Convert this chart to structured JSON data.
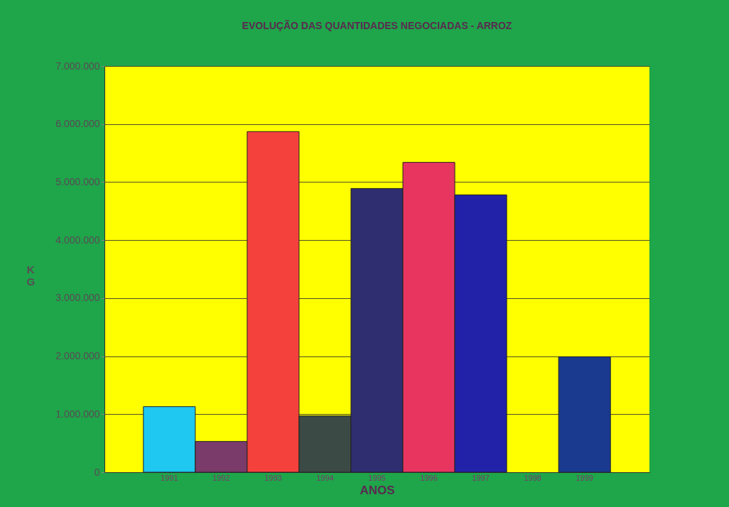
{
  "chart_data": {
    "type": "bar",
    "title": "EVOLUÇÃO DAS QUANTIDADES NEGOCIADAS - ARROZ",
    "xlabel": "ANOS",
    "ylabel": "KG",
    "categories": [
      "1991",
      "1992",
      "1993",
      "1994",
      "1995",
      "1996",
      "1997",
      "1998",
      "1999"
    ],
    "values": [
      1130000,
      530000,
      5870000,
      970000,
      4890000,
      5340000,
      4780000,
      null,
      1990000
    ],
    "colors": [
      "#1ec8f0",
      "#7a3a6a",
      "#f5413c",
      "#3c4a45",
      "#2e2e70",
      "#e83560",
      "#2222a8",
      "#2222a8",
      "#1a3a90"
    ],
    "ylim": [
      0,
      7000000
    ],
    "yticks": [
      {
        "value": 0,
        "label": "0"
      },
      {
        "value": 1000000,
        "label": "1.000.000"
      },
      {
        "value": 2000000,
        "label": "2.000.000"
      },
      {
        "value": 3000000,
        "label": "3.000.000"
      },
      {
        "value": 4000000,
        "label": "4.000.000"
      },
      {
        "value": 5000000,
        "label": "5.000.000"
      },
      {
        "value": 6000000,
        "label": "6.000.000"
      },
      {
        "value": 7000000,
        "label": "7.000.000"
      }
    ],
    "grid": "y"
  }
}
